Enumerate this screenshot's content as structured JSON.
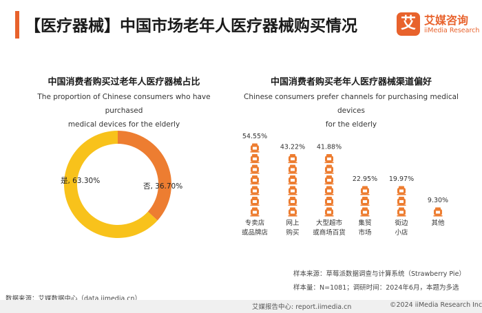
{
  "header": {
    "title": "【医疗器械】中国市场老年人医疗器械购买情况",
    "logo_mark": "艾",
    "logo_cn": "艾媒咨询",
    "logo_en": "iiMedia Research"
  },
  "colors": {
    "accent": "#e8622c",
    "yes": "#f8c21b",
    "no": "#ed7d31",
    "bar": "#ed7d31"
  },
  "chart_data": [
    {
      "type": "pie",
      "variant": "donut",
      "title": "中国消费者购买过老年人医疗器械占比",
      "subtitle": "The proportion of Chinese consumers who have purchased medical devices for the elderly",
      "subtitle_line1": "The proportion of Chinese consumers who have purchased",
      "subtitle_line2": "medical devices for the elderly",
      "slices": [
        {
          "label": "是",
          "value": 63.3,
          "display": "是, 63.30%"
        },
        {
          "label": "否",
          "value": 36.7,
          "display": "否, 36.70%"
        }
      ]
    },
    {
      "type": "bar",
      "variant": "pictogram",
      "title": "中国消费者购买老年人医疗器械渠道偏好",
      "subtitle": "Chinese consumers prefer channels for purchasing medical devices for the elderly",
      "subtitle_line1": "Chinese consumers prefer channels for purchasing medical devices",
      "subtitle_line2": "for the elderly",
      "categories": [
        "专卖店或品牌店",
        "网上购买",
        "大型超市或商场百货",
        "集贸市场",
        "街边小店",
        "其他"
      ],
      "category_lines": [
        [
          "专卖店",
          "或品牌店"
        ],
        [
          "网上",
          "购买"
        ],
        [
          "大型超市",
          "或商场百货"
        ],
        [
          "集贸",
          "市场"
        ],
        [
          "街边",
          "小店"
        ],
        [
          "其他"
        ]
      ],
      "values": [
        54.55,
        43.22,
        41.88,
        22.95,
        19.97,
        9.3
      ],
      "value_labels": [
        "54.55%",
        "43.22%",
        "41.88%",
        "22.95%",
        "19.97%",
        "9.30%"
      ],
      "unit": "%"
    }
  ],
  "footer": {
    "sample_source": "样本来源：草莓派数据调查与计算系统（Strawberry Pie）",
    "sample_info": "样本量：N=1081；调研时间：2024年6月，本题为多选",
    "data_source": "数据来源：艾媒数据中心（data.iimedia.cn）",
    "report_site": "艾媒报告中心: report.iimedia.cn",
    "copyright": "©2024  iiMedia Research Inc"
  }
}
